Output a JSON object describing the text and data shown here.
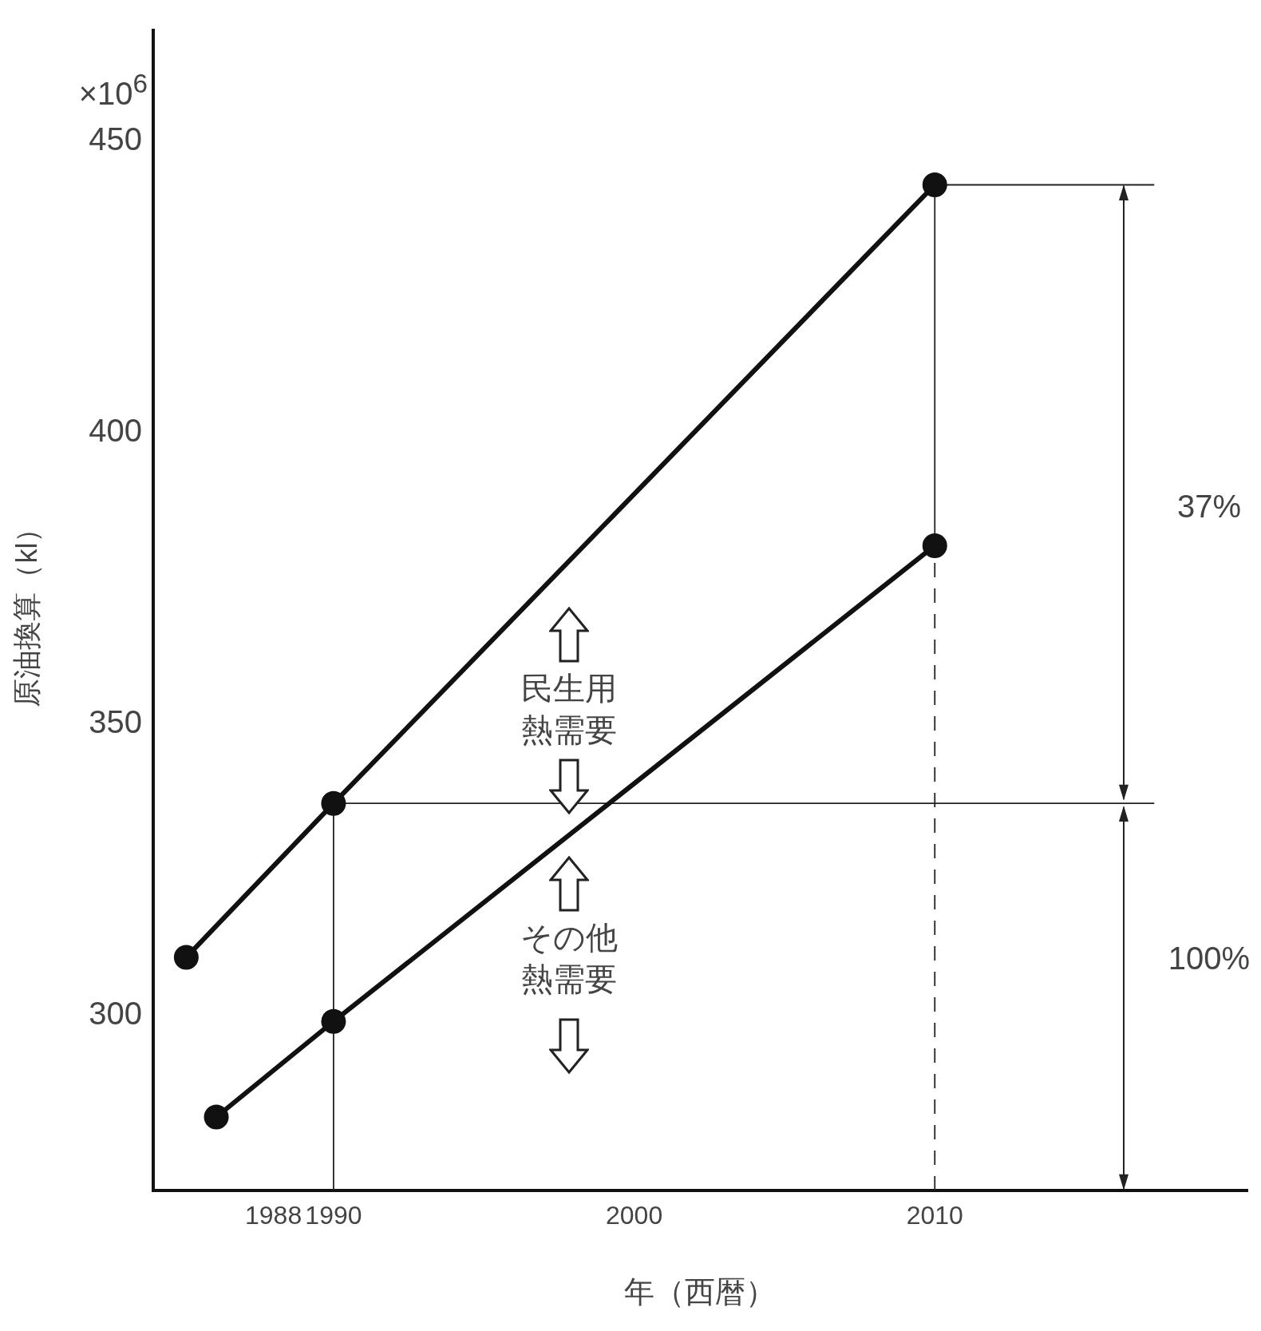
{
  "chart_data": {
    "type": "line",
    "xlabel": "年（西暦）",
    "ylabel": "原油換算（kl）",
    "xlim": [
      1984,
      2020.4
    ],
    "ylim": [
      270,
      469
    ],
    "xticks": [
      1988,
      1990,
      2000,
      2010
    ],
    "yticks": [
      300,
      350,
      400,
      450
    ],
    "grid": false,
    "legend": false,
    "series": [
      {
        "color": "#111111",
        "x": [
          1985.1,
          1990,
          2010
        ],
        "values": [
          310,
          336.4,
          442.5
        ],
        "marker": "circle",
        "line_style": "solid"
      },
      {
        "color": "#111111",
        "x": [
          1986.1,
          1990,
          2010
        ],
        "values": [
          282.6,
          299,
          380.6
        ],
        "marker": "circle",
        "line_style": "solid"
      },
      {
        "color": "#222222",
        "x": [
          1990,
          1990,
          2017.3
        ],
        "values": [
          270,
          336.4,
          336.4
        ],
        "marker": "none",
        "line_style": "solid"
      },
      {
        "color": "#222222",
        "x": [
          2010,
          2010,
          2017.3
        ],
        "values": [
          380.6,
          442.5,
          442.5
        ],
        "marker": "none",
        "line_style": "solid"
      },
      {
        "color": "#222222",
        "x": [
          2010,
          2010
        ],
        "values": [
          270,
          380.6
        ],
        "marker": "none",
        "line_style": "dashed"
      }
    ],
    "annotations": [
      "×10$^{6}$",
      "民生用熱需要",
      "その他熱需要",
      "37%",
      "100%"
    ]
  }
}
